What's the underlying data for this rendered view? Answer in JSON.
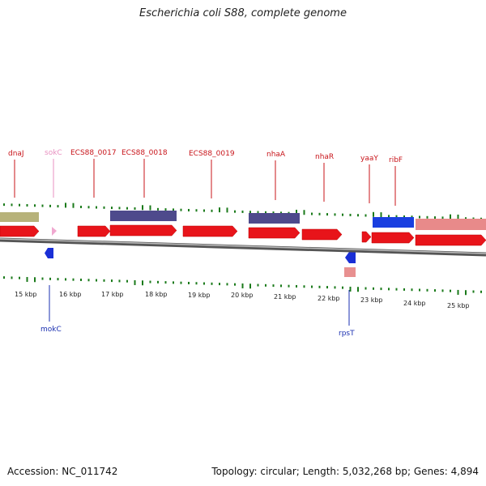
{
  "title": "Escherichia coli S88, complete genome",
  "footer": {
    "accession": "Accession: NC_011742",
    "summary": "Topology: circular; Length: 5,032,268 bp; Genes: 4,894"
  },
  "colors": {
    "forward_cds": "#e8141a",
    "rna": "#f0a8d0",
    "reverse_cds": "#1a2fd6",
    "reverse_pale": "#e89090",
    "feature_olive": "#b7b27a",
    "feature_navy": "#4e4a8c",
    "feature_blue": "#1a3fe0",
    "feature_pink": "#e88a8a",
    "gc_tick": "#1a7a1a",
    "top_label": "#c8141a",
    "rna_label": "#e890c0",
    "bottom_label": "#1a2fb0"
  },
  "scale_labels": [
    "15 kbp",
    "16 kbp",
    "17 kbp",
    "18 kbp",
    "19 kbp",
    "20 kbp",
    "21 kbp",
    "22 kbp",
    "23 kbp",
    "24 kbp",
    "25 kbp"
  ],
  "top_genes": [
    {
      "label": "dnaJ",
      "kind": "cds"
    },
    {
      "label": "sokC",
      "kind": "rna"
    },
    {
      "label": "ECS88_0017",
      "kind": "cds"
    },
    {
      "label": "ECS88_0018",
      "kind": "cds"
    },
    {
      "label": "ECS88_0019",
      "kind": "cds"
    },
    {
      "label": "nhaA",
      "kind": "cds"
    },
    {
      "label": "nhaR",
      "kind": "cds"
    },
    {
      "label": "yaaY",
      "kind": "cds"
    },
    {
      "label": "ribF",
      "kind": "cds"
    }
  ],
  "bottom_genes": [
    {
      "label": "mokC"
    },
    {
      "label": "rpsT"
    }
  ]
}
